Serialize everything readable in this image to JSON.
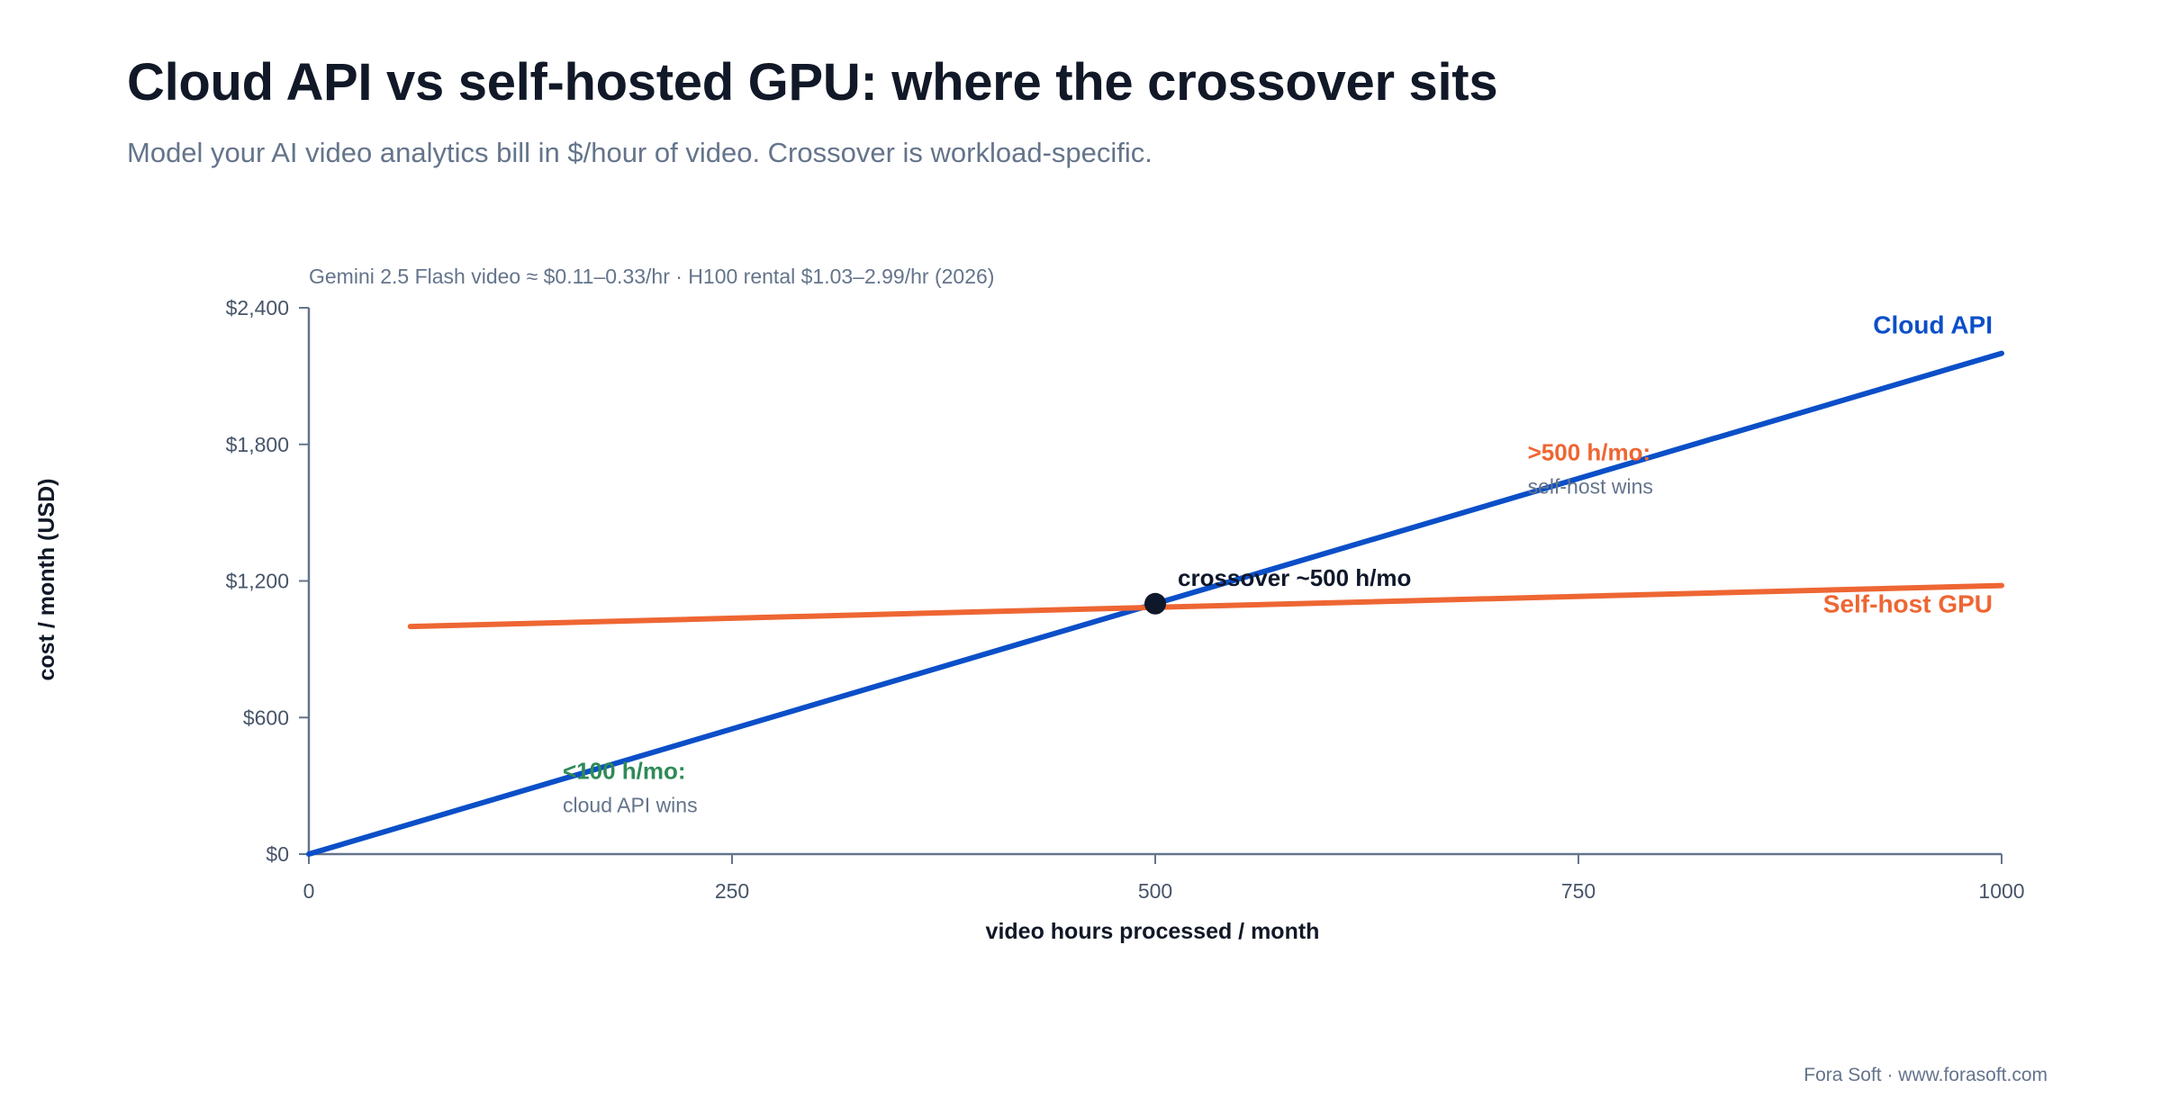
{
  "header": {
    "title": "Cloud API vs self-hosted GPU: where the crossover sits",
    "subtitle": "Model your AI video analytics bill in $/hour of video. Crossover is workload-specific."
  },
  "footer": {
    "credit": "Fora Soft · www.forasoft.com"
  },
  "chart_data": {
    "type": "line",
    "caption": "Gemini 2.5 Flash video ≈ $0.11–0.33/hr · H100 rental $1.03–2.99/hr (2026)",
    "xlabel": "video hours processed / month",
    "ylabel": "cost / month (USD)",
    "xlim": [
      0,
      1000
    ],
    "ylim": [
      0,
      2400
    ],
    "x_ticks": [
      {
        "value": 0,
        "label": "0"
      },
      {
        "value": 250,
        "label": "250"
      },
      {
        "value": 500,
        "label": "500"
      },
      {
        "value": 750,
        "label": "750"
      },
      {
        "value": 1000,
        "label": "1000"
      }
    ],
    "y_ticks": [
      {
        "value": 0,
        "label": "$0"
      },
      {
        "value": 600,
        "label": "$600"
      },
      {
        "value": 1200,
        "label": "$1,200"
      },
      {
        "value": 1800,
        "label": "$1,800"
      },
      {
        "value": 2400,
        "label": "$2,400"
      }
    ],
    "grid": false,
    "series": [
      {
        "name": "Cloud API",
        "color": "#0b4fc8",
        "points": [
          {
            "x": 0,
            "y": 0
          },
          {
            "x": 1000,
            "y": 2200
          }
        ]
      },
      {
        "name": "Self-host GPU",
        "color": "#ee6633",
        "points": [
          {
            "x": 60,
            "y": 1000
          },
          {
            "x": 1000,
            "y": 1180
          }
        ]
      }
    ],
    "crossover": {
      "x": 500,
      "y": 1100,
      "label": "crossover ~500 h/mo",
      "color": "#0f172a"
    },
    "annotations": [
      {
        "x": 150,
        "y": 330,
        "title": "<100 h/mo:",
        "subtitle": "cloud API wins",
        "title_color": "#2e8b57",
        "subtitle_color": "#64748b"
      },
      {
        "x": 720,
        "y": 1730,
        "title": ">500 h/mo:",
        "subtitle": "self-host wins",
        "title_color": "#ee6633",
        "subtitle_color": "#64748b"
      }
    ],
    "axis_color": "#64748b",
    "text_color": "#111827"
  }
}
